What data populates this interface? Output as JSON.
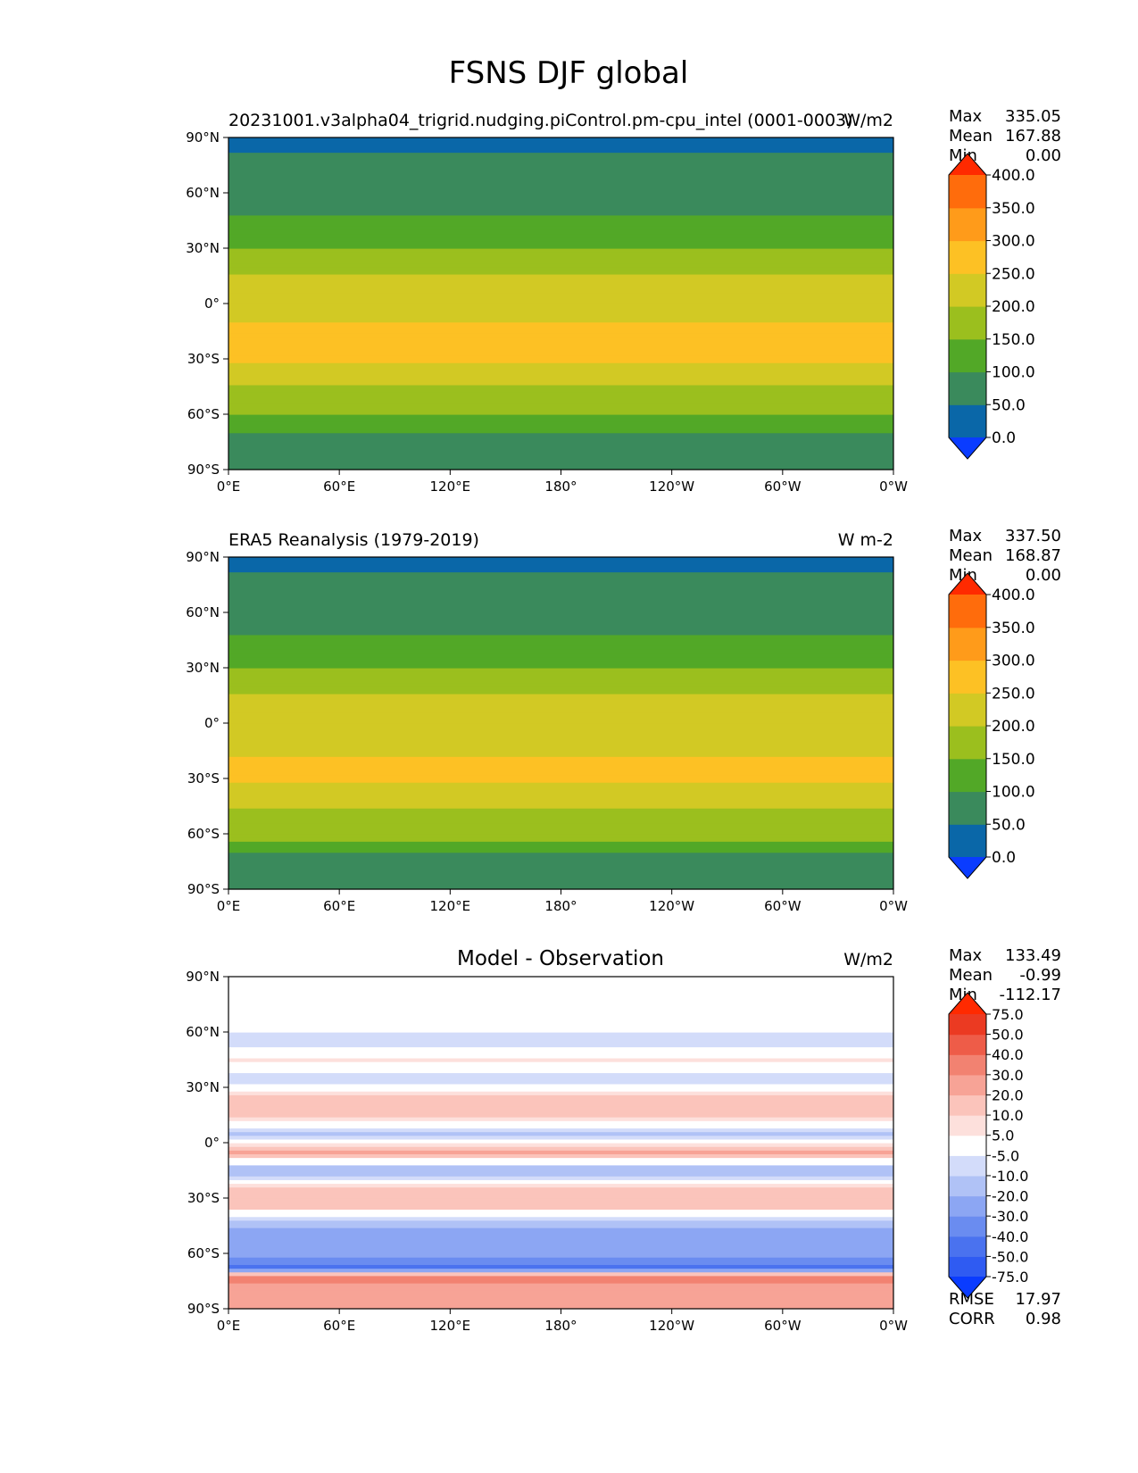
{
  "figure": {
    "title": "FSNS DJF global"
  },
  "chart_data": [
    {
      "type": "heatmap",
      "id": "test",
      "title": "20231001.v3alpha04_trigrid.nudging.piControl.pm-cpu_intel (0001-0003)",
      "units": "W/m2",
      "xlim": [
        0,
        360
      ],
      "ylim": [
        -90,
        90
      ],
      "x_ticks": [
        "0°E",
        "60°E",
        "120°E",
        "180°",
        "120°W",
        "60°W",
        "0°W"
      ],
      "y_ticks": [
        "90°N",
        "60°N",
        "30°N",
        "0°",
        "30°S",
        "60°S",
        "90°S"
      ],
      "stats": {
        "Max": "335.05",
        "Mean": "167.88",
        "Min": "0.00"
      },
      "zonal_profile": {
        "lat": [
          -90,
          -80,
          -72,
          -66,
          -60,
          -50,
          -40,
          -30,
          -20,
          -10,
          0,
          10,
          20,
          30,
          40,
          50,
          60,
          70,
          82,
          90
        ],
        "value": [
          85,
          85,
          85,
          130,
          150,
          175,
          215,
          255,
          260,
          250,
          220,
          215,
          190,
          150,
          120,
          95,
          60,
          50,
          50,
          10
        ]
      },
      "colorbar": {
        "levels": [
          "0.0",
          "50.0",
          "100.0",
          "150.0",
          "200.0",
          "250.0",
          "300.0",
          "350.0",
          "400.0"
        ],
        "colors": [
          "#0a3cff",
          "#0a67a8",
          "#3a8a5c",
          "#52a827",
          "#9bbf1e",
          "#d2c924",
          "#fdc124",
          "#ff9b1a",
          "#ff6c0c",
          "#ff2a00"
        ]
      }
    },
    {
      "type": "heatmap",
      "id": "ref",
      "title": "ERA5 Reanalysis (1979-2019)",
      "units": "W m-2",
      "xlim": [
        0,
        360
      ],
      "ylim": [
        -90,
        90
      ],
      "x_ticks": [
        "0°E",
        "60°E",
        "120°E",
        "180°",
        "120°W",
        "60°W",
        "0°W"
      ],
      "y_ticks": [
        "90°N",
        "60°N",
        "30°N",
        "0°",
        "30°S",
        "60°S",
        "90°S"
      ],
      "stats": {
        "Max": "337.50",
        "Mean": "168.87",
        "Min": "0.00"
      },
      "zonal_profile": {
        "lat": [
          -90,
          -80,
          -72,
          -66,
          -60,
          -50,
          -40,
          -30,
          -20,
          -10,
          0,
          10,
          20,
          30,
          40,
          50,
          60,
          70,
          82,
          90
        ],
        "value": [
          85,
          85,
          85,
          140,
          160,
          185,
          220,
          255,
          255,
          235,
          215,
          210,
          190,
          150,
          120,
          95,
          60,
          50,
          50,
          10
        ]
      },
      "colorbar": {
        "levels": [
          "0.0",
          "50.0",
          "100.0",
          "150.0",
          "200.0",
          "250.0",
          "300.0",
          "350.0",
          "400.0"
        ],
        "colors": [
          "#0a3cff",
          "#0a67a8",
          "#3a8a5c",
          "#52a827",
          "#9bbf1e",
          "#d2c924",
          "#fdc124",
          "#ff9b1a",
          "#ff6c0c",
          "#ff2a00"
        ]
      }
    },
    {
      "type": "heatmap",
      "id": "diff",
      "title": "Model - Observation",
      "units": "W/m2",
      "xlim": [
        0,
        360
      ],
      "ylim": [
        -90,
        90
      ],
      "x_ticks": [
        "0°E",
        "60°E",
        "120°E",
        "180°",
        "120°W",
        "60°W",
        "0°W"
      ],
      "y_ticks": [
        "90°N",
        "60°N",
        "30°N",
        "0°",
        "30°S",
        "60°S",
        "90°S"
      ],
      "stats": {
        "Max": "133.49",
        "Mean": "-0.99",
        "Min": "-112.17"
      },
      "metrics": {
        "RMSE": "17.97",
        "CORR": "0.98"
      },
      "zonal_profile": {
        "lat": [
          -90,
          -80,
          -72,
          -68,
          -62,
          -55,
          -45,
          -35,
          -25,
          -15,
          -5,
          5,
          15,
          25,
          35,
          45,
          55,
          65,
          75,
          90
        ],
        "value": [
          22,
          22,
          35,
          -45,
          -30,
          -25,
          -20,
          10,
          15,
          -20,
          20,
          -15,
          15,
          10,
          -10,
          5,
          -10,
          0,
          0,
          0
        ]
      },
      "colorbar": {
        "levels": [
          "-75.0",
          "-50.0",
          "-40.0",
          "-30.0",
          "-20.0",
          "-10.0",
          "-5.0",
          "5.0",
          "10.0",
          "20.0",
          "30.0",
          "40.0",
          "50.0",
          "75.0"
        ],
        "colors": [
          "#0a3cff",
          "#2f5bf2",
          "#4a72ef",
          "#6a8cf0",
          "#8ca6f3",
          "#b0c2f6",
          "#d3dcfa",
          "#ffffff",
          "#fde0dc",
          "#fbc4bb",
          "#f7a396",
          "#f28271",
          "#ee5c48",
          "#eb3a22",
          "#ff2a00"
        ]
      }
    }
  ]
}
